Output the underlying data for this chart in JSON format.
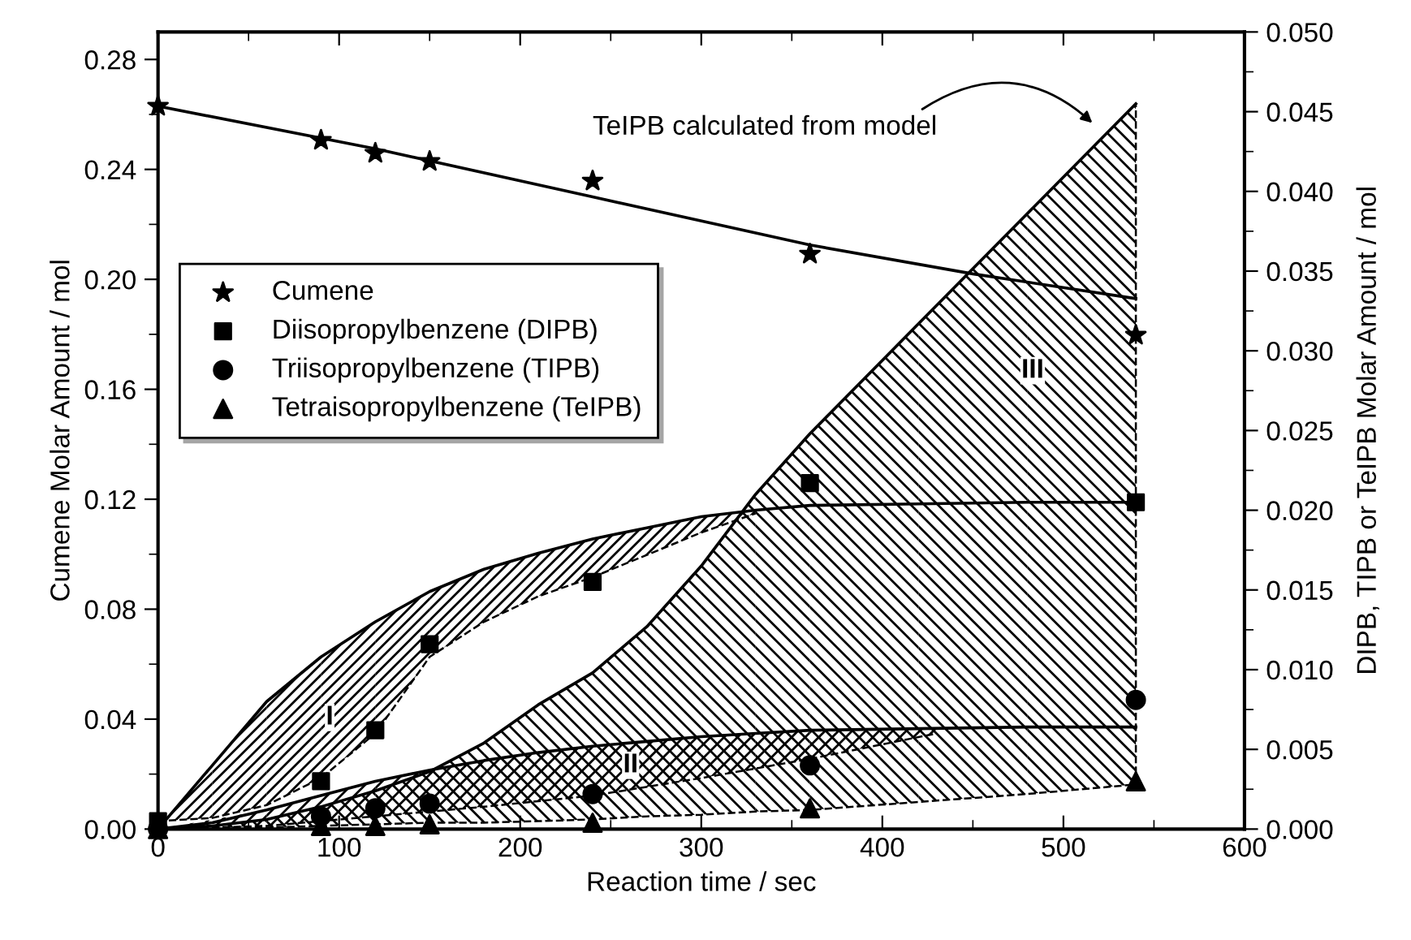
{
  "chart_data": {
    "type": "scatter",
    "xlabel": "Reaction time / sec",
    "ylabel": "Cumene Molar Amount / mol",
    "y2label": "DIPB, TIPB or TeIPB Molar Amount / mol",
    "xlim": [
      0,
      600
    ],
    "xticks": [
      0,
      100,
      200,
      300,
      400,
      500,
      600
    ],
    "ylim": [
      0,
      0.29
    ],
    "yticks": [
      {
        "value": 0,
        "label": "0.00"
      },
      {
        "value": 0.04,
        "label": "0.04"
      },
      {
        "value": 0.08,
        "label": "0.08"
      },
      {
        "value": 0.12,
        "label": "0.12"
      },
      {
        "value": 0.16,
        "label": "0.16"
      },
      {
        "value": 0.2,
        "label": "0.20"
      },
      {
        "value": 0.24,
        "label": "0.24"
      },
      {
        "value": 0.28,
        "label": "0.28"
      }
    ],
    "y2lim": [
      0,
      0.05
    ],
    "y2ticks": [
      {
        "value": 0,
        "label": "0.000"
      },
      {
        "value": 0.005,
        "label": "0.005"
      },
      {
        "value": 0.01,
        "label": "0.010"
      },
      {
        "value": 0.015,
        "label": "0.015"
      },
      {
        "value": 0.02,
        "label": "0.020"
      },
      {
        "value": 0.025,
        "label": "0.025"
      },
      {
        "value": 0.03,
        "label": "0.030"
      },
      {
        "value": 0.035,
        "label": "0.035"
      },
      {
        "value": 0.04,
        "label": "0.040"
      },
      {
        "value": 0.045,
        "label": "0.045"
      },
      {
        "value": 0.05,
        "label": "0.050"
      }
    ],
    "legend": "left",
    "grid": false,
    "series": [
      {
        "name": "Cumene",
        "marker": "star",
        "color": "#000000",
        "x": [
          0,
          90,
          120,
          150,
          240,
          360,
          540
        ],
        "values": [
          0.263,
          0.2506,
          0.2459,
          0.2429,
          0.2358,
          0.2092,
          0.1797
        ]
      },
      {
        "name": "Diisopropylbenzene (DIPB)",
        "marker": "square",
        "axis": "y2",
        "color": "#000000",
        "x": [
          0,
          90,
          120,
          150,
          240,
          360,
          540
        ],
        "values": [
          0.0005,
          0.003,
          0.0062,
          0.0116,
          0.0155,
          0.0217,
          0.0205
        ]
      },
      {
        "name": "Triisopropylbenzene (TIPB)",
        "marker": "circle",
        "axis": "y2",
        "color": "#000000",
        "x": [
          0,
          90,
          120,
          150,
          240,
          360,
          540
        ],
        "values": [
          0,
          0.0008,
          0.0013,
          0.0016,
          0.0022,
          0.004,
          0.0081
        ]
      },
      {
        "name": "Tetraisopropylbenzene (TeIPB)",
        "marker": "triangle",
        "axis": "y2",
        "color": "#000000",
        "x": [
          0,
          90,
          120,
          150,
          240,
          360,
          540
        ],
        "values": [
          0,
          0.0002,
          0.0002,
          0.0003,
          0.0004,
          0.0013,
          0.003
        ]
      },
      {
        "type": "line",
        "color": "#000000",
        "x": [
          0,
          120,
          240,
          360,
          450,
          540
        ],
        "values": [
          0.263,
          0.2475,
          0.23,
          0.2125,
          0.202,
          0.193
        ]
      },
      {
        "type": "line",
        "axis": "y2",
        "color": "#000000",
        "x": [
          0,
          30,
          60,
          90,
          120,
          150,
          180,
          210,
          240,
          270,
          300,
          330,
          360,
          420,
          480,
          540
        ],
        "values": [
          0,
          0.004,
          0.008,
          0.0108,
          0.013,
          0.0149,
          0.0163,
          0.0173,
          0.0182,
          0.0189,
          0.0196,
          0.02,
          0.0203,
          0.0204,
          0.0205,
          0.0205
        ]
      },
      {
        "type": "line",
        "line_style": "dashed",
        "axis": "y2",
        "color": "#000000",
        "x": [
          0,
          30,
          60,
          90,
          120,
          150,
          180,
          210,
          240,
          270,
          300,
          330
        ],
        "values": [
          0.0005,
          0.0007,
          0.0015,
          0.0032,
          0.006,
          0.0108,
          0.013,
          0.0146,
          0.0158,
          0.0172,
          0.0186,
          0.0198
        ]
      },
      {
        "type": "line",
        "axis": "y2",
        "color": "#000000",
        "x": [
          0,
          30,
          60,
          90,
          120,
          150,
          180,
          210,
          240,
          270,
          300,
          330,
          360,
          420,
          480,
          540
        ],
        "values": [
          0,
          0.0004,
          0.0012,
          0.0021,
          0.003,
          0.0037,
          0.0043,
          0.0048,
          0.0052,
          0.0055,
          0.0058,
          0.006,
          0.0062,
          0.0063,
          0.0064,
          0.0064
        ]
      },
      {
        "type": "line",
        "line_style": "dashed",
        "axis": "y2",
        "color": "#000000",
        "x": [
          0,
          60,
          120,
          180,
          240,
          300,
          360,
          430
        ],
        "values": [
          0,
          0.0002,
          0.0008,
          0.0014,
          0.0021,
          0.0032,
          0.0044,
          0.006
        ]
      },
      {
        "type": "line",
        "axis": "y2",
        "color": "#000000",
        "x": [
          0,
          30,
          60,
          90,
          120,
          150,
          180,
          210,
          240,
          270,
          300,
          330,
          360,
          420,
          480,
          540
        ],
        "values": [
          0,
          0.0002,
          0.0006,
          0.0014,
          0.0024,
          0.0036,
          0.0054,
          0.0078,
          0.0098,
          0.0127,
          0.0165,
          0.021,
          0.0248,
          0.0317,
          0.0386,
          0.0455
        ]
      },
      {
        "type": "line",
        "line_style": "dashed",
        "axis": "y2",
        "color": "#000000",
        "x": [
          0,
          30,
          60,
          90,
          120,
          150,
          180,
          210,
          240,
          270,
          300,
          330,
          360,
          420,
          480,
          540,
          540
        ],
        "values": [
          0,
          0.0001,
          0.0001,
          0.0002,
          0.0003,
          0.0004,
          0.0004,
          0.0005,
          0.0006,
          0.0008,
          0.0009,
          0.0011,
          0.0012,
          0.0017,
          0.0022,
          0.0028,
          0.0455
        ]
      }
    ],
    "annotations": [
      "TeIPB calculated from model",
      "I",
      "II",
      "III"
    ]
  }
}
